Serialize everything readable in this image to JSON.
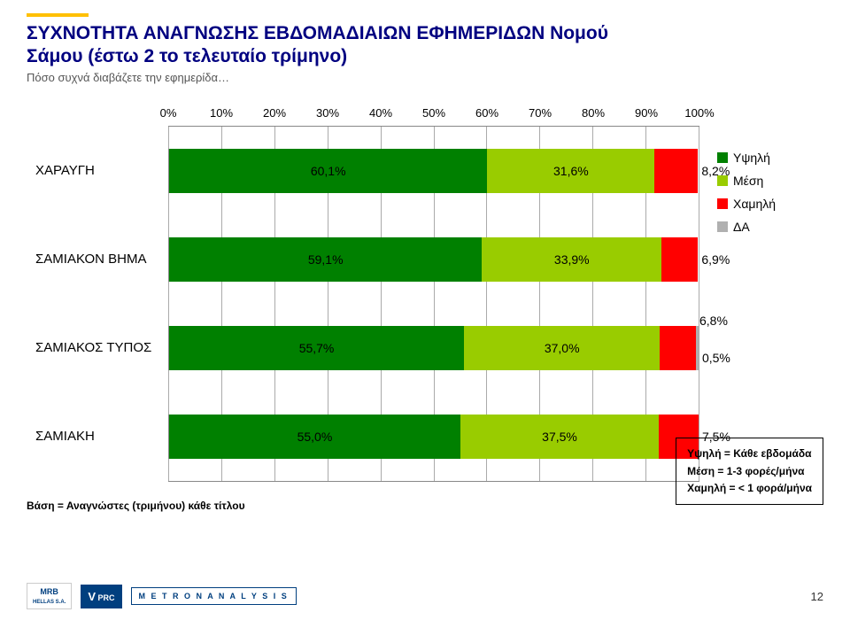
{
  "accent_color": "#ffc000",
  "title_line1": "ΣΥΧΝΟΤΗΤΑ ΑΝΑΓΝΩΣΗΣ ΕΒΔΟΜΑΔΙΑΙΩΝ ΕΦΗΜΕΡΙΔΩΝ Νομού",
  "title_line2": "Σάμου (έστω 2 το τελευταίο τρίμηνο)",
  "subtitle": "Πόσο συχνά διαβάζετε την εφημερίδα…",
  "chart": {
    "type": "stacked-bar-horizontal",
    "x_ticks": [
      "0%",
      "10%",
      "20%",
      "30%",
      "40%",
      "50%",
      "60%",
      "70%",
      "80%",
      "90%",
      "100%"
    ],
    "xlim": [
      0,
      100
    ],
    "colors": {
      "high": "#008000",
      "mid": "#99cc00",
      "low": "#ff0000",
      "na": "#b0b0b0"
    },
    "legend": [
      {
        "key": "high",
        "label": "Υψηλή"
      },
      {
        "key": "mid",
        "label": "Μέση"
      },
      {
        "key": "low",
        "label": "Χαμηλή"
      },
      {
        "key": "na",
        "label": "ΔΑ"
      }
    ],
    "rows": [
      {
        "label": "ΧΑΡΑΥΓΗ",
        "segs": [
          {
            "k": "high",
            "v": 60.1,
            "t": "60,1%"
          },
          {
            "k": "mid",
            "v": 31.6,
            "t": "31,6%"
          },
          {
            "k": "low",
            "v": 8.2,
            "t": "8,2%"
          }
        ]
      },
      {
        "label": "ΣΑΜΙΑΚΟΝ ΒΗΜΑ",
        "segs": [
          {
            "k": "high",
            "v": 59.1,
            "t": "59,1%"
          },
          {
            "k": "mid",
            "v": 33.9,
            "t": "33,9%"
          },
          {
            "k": "low",
            "v": 6.9,
            "t": "6,9%"
          }
        ]
      },
      {
        "label": "ΣΑΜΙΑΚΟΣ ΤΥΠΟΣ",
        "segs": [
          {
            "k": "high",
            "v": 55.7,
            "t": "55,7%"
          },
          {
            "k": "mid",
            "v": 37.0,
            "t": "37,0%"
          },
          {
            "k": "low",
            "v": 6.8,
            "t": "6,8%"
          },
          {
            "k": "na",
            "v": 0.5,
            "t": "0,5%"
          }
        ]
      },
      {
        "label": "ΣΑΜΙΑΚΗ",
        "segs": [
          {
            "k": "high",
            "v": 55.0,
            "t": "55,0%"
          },
          {
            "k": "mid",
            "v": 37.5,
            "t": "37,5%"
          },
          {
            "k": "low",
            "v": 7.5,
            "t": "7,5%"
          }
        ]
      }
    ]
  },
  "note_lines": [
    "Υψηλή = Κάθε εβδομάδα",
    "Μέση = 1-3 φορές/μήνα",
    "Χαμηλή = < 1 φορά/μήνα"
  ],
  "base_note": "Βάση = Αναγνώστες (τριμήνου) κάθε τίτλου",
  "logos": {
    "mrb": "MRB\nHELLAS S.A.",
    "vprc": "V PRC",
    "metron": "M E T R O N A N A L Y S I S"
  },
  "page_number": "12"
}
